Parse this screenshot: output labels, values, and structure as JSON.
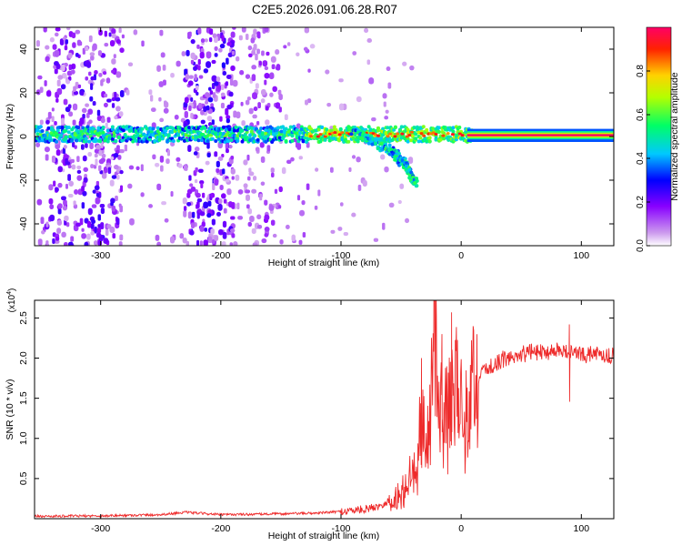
{
  "figure": {
    "title": "C2E5.2026.091.06.28.R07",
    "colors": {
      "snr_line": "#ee2b2b",
      "axis": "#000000",
      "background": "#ffffff"
    }
  },
  "chart_data": [
    {
      "type": "heatmap",
      "name": "spectrogram",
      "xlabel": "Height of straight line (km)",
      "ylabel": "Frequency (Hz)",
      "xlim": [
        -355,
        127
      ],
      "ylim": [
        -50,
        50
      ],
      "xticks": [
        -300,
        -200,
        -100,
        0,
        100
      ],
      "xtick_labels": [
        "-300",
        "-200",
        "-100",
        "0",
        "100"
      ],
      "yticks": [
        -40,
        -20,
        0,
        20,
        40
      ],
      "ytick_labels": [
        "-40",
        "-20",
        "0",
        "20",
        "40"
      ],
      "colorbar": {
        "label": "Normalized spectral amplitude",
        "range": [
          0,
          1
        ],
        "ticks": [
          0.0,
          0.2,
          0.4,
          0.6,
          0.8
        ],
        "tick_labels": [
          "0.0",
          "0.2",
          "0.4",
          "0.6",
          "0.8"
        ],
        "colors": [
          "#ffffff",
          "#cc88ee",
          "#8800ff",
          "#0000ff",
          "#00c8ff",
          "#00ff66",
          "#b4ff00",
          "#ffd200",
          "#ff2200",
          "#ff0066"
        ]
      },
      "features": [
        {
          "name": "main carrier band",
          "x_range": [
            -355,
            10
          ],
          "center_hz": 1,
          "width_hz": 6,
          "amplitude": 0.45
        },
        {
          "name": "saturated carrier",
          "x_range": [
            5,
            127
          ],
          "center_hz": 0.5,
          "width_hz": 4,
          "amplitude": 1.0
        },
        {
          "name": "descending branch",
          "points": [
            [
              -90,
              2
            ],
            [
              -70,
              -3
            ],
            [
              -55,
              -8
            ],
            [
              -45,
              -14
            ],
            [
              -38,
              -22
            ]
          ],
          "amplitude": 0.5
        },
        {
          "name": "noise column",
          "x_range": [
            -345,
            -280
          ],
          "amplitude": 0.25
        },
        {
          "name": "noise column",
          "x_range": [
            -230,
            -185
          ],
          "amplitude": 0.3
        },
        {
          "name": "sparse noise",
          "x_range": [
            -280,
            -120
          ],
          "amplitude": 0.12
        }
      ]
    },
    {
      "type": "line",
      "name": "snr",
      "xlabel": "Height of straight line (km)",
      "ylabel": "SNR (10 * v/v)",
      "y_multiplier": "(x10",
      "y_multiplier_exponent": "4",
      "xlim": [
        -355,
        127
      ],
      "ylim": [
        0,
        2.72
      ],
      "xticks": [
        -300,
        -200,
        -100,
        0,
        100
      ],
      "xtick_labels": [
        "-300",
        "-200",
        "-100",
        "0",
        "100"
      ],
      "yticks": [
        0.5,
        1.0,
        1.5,
        2.0,
        2.5
      ],
      "ytick_labels": [
        "0.5",
        "1.0",
        "1.5",
        "2.0",
        "2.5"
      ],
      "series": [
        {
          "name": "SNR",
          "color": "#ee2b2b",
          "x": [
            -355,
            -300,
            -250,
            -230,
            -200,
            -150,
            -120,
            -100,
            -80,
            -70,
            -60,
            -50,
            -45,
            -40,
            -35,
            -30,
            -25,
            -22,
            -20,
            -15,
            -10,
            -5,
            0,
            5,
            10,
            20,
            30,
            40,
            50,
            60,
            70,
            80,
            90,
            100,
            110,
            120,
            127
          ],
          "y": [
            0.03,
            0.035,
            0.05,
            0.08,
            0.05,
            0.06,
            0.07,
            0.09,
            0.12,
            0.15,
            0.22,
            0.35,
            0.5,
            0.7,
            1.0,
            1.3,
            1.5,
            2.7,
            1.5,
            1.55,
            1.5,
            1.6,
            1.65,
            1.5,
            1.7,
            1.85,
            1.95,
            2.0,
            2.05,
            2.08,
            2.08,
            2.1,
            2.08,
            2.05,
            2.05,
            2.03,
            2.02
          ]
        }
      ],
      "spikes": [
        {
          "x": -22,
          "y": 2.7
        },
        {
          "x": -33,
          "y": 2.0
        },
        {
          "x": -8,
          "y": 2.57
        },
        {
          "x": -16,
          "y": 2.3
        },
        {
          "x": 90,
          "y": 2.42
        }
      ]
    }
  ]
}
